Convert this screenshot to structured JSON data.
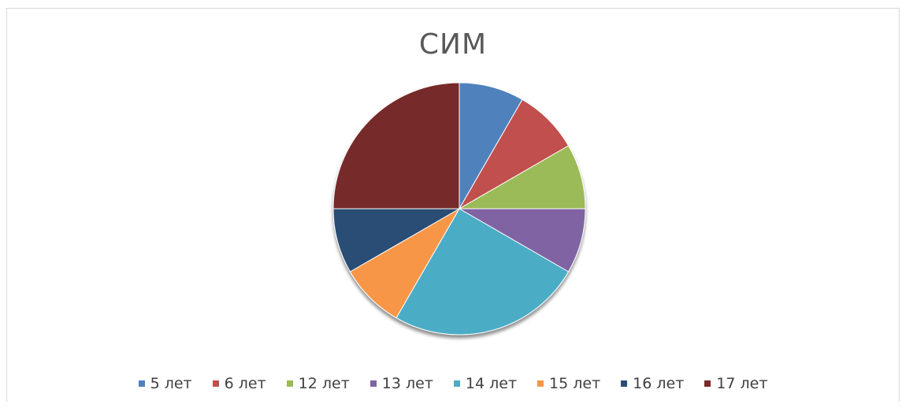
{
  "chart_data": {
    "type": "pie",
    "title": "СИМ",
    "categories": [
      "5 лет",
      "6 лет",
      "12 лет",
      "13 лет",
      "14 лет",
      "15 лет",
      "16 лет",
      "17 лет"
    ],
    "values": [
      1,
      1,
      1,
      1,
      3,
      1,
      1,
      3
    ],
    "colors": [
      "#4f81bd",
      "#c0504d",
      "#9bbb59",
      "#8064a2",
      "#4bacc6",
      "#f79646",
      "#2c4d75",
      "#772c2a"
    ],
    "legend_position": "bottom",
    "start_angle": "12 o'clock",
    "direction": "clockwise"
  }
}
